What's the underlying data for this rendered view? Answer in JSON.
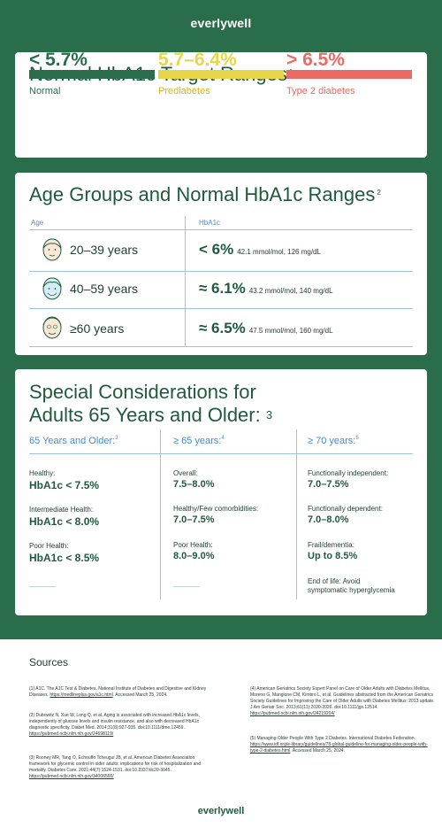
{
  "brand": {
    "logo": "everlywell"
  },
  "colors": {
    "normal": "#2a6d4b",
    "prediabetes": "#e8d64a",
    "type2": "#ea6b63",
    "accent_blue": "#4a8ad0"
  },
  "card1": {
    "title": "Normal HbA1c Target Ranges",
    "sup": "1",
    "ranges": [
      {
        "value": "< 5.7%",
        "label": "Normal"
      },
      {
        "value": "5.7–6.4%",
        "label": "Prediabetes"
      },
      {
        "value": "> 6.5%",
        "label": "Type 2 diabetes"
      }
    ]
  },
  "card2": {
    "title": "Age Groups and Normal HbA1c Ranges",
    "sup": "2",
    "col_age": "Age",
    "col_hba1c": "HbA1c",
    "rows": [
      {
        "icon": "young-face-icon",
        "age": "20–39 years",
        "value": "< 6%",
        "sub": "42.1 mmol/mol, 126 mg/dL"
      },
      {
        "icon": "middle-age-face-icon",
        "age": "40–59 years",
        "value": "≈ 6.1%",
        "sub": "43.2 mmol/mol, 140 mg/dL"
      },
      {
        "icon": "older-face-icon",
        "age": "≥60 years",
        "value": "≈ 6.5%",
        "sub": "47.5 mmol/mol, 160 mg/dL"
      }
    ]
  },
  "card3": {
    "title_line1": "Special Considerations for",
    "title_line2": "Adults 65 Years and Older:",
    "sup": "3",
    "columns": [
      {
        "header": "65 Years and Older:",
        "sup": "3",
        "items": [
          {
            "label": "Healthy:",
            "value": "HbA1c < 7.5%"
          },
          {
            "label": "Intermediate Health:",
            "value": "HbA1c < 8.0%"
          },
          {
            "label": "Poor Health:",
            "value": "HbA1c < 8.5%"
          }
        ]
      },
      {
        "header": "≥ 65 years:",
        "sup": "4",
        "items": [
          {
            "label": "Overall:",
            "value": "7.5–8.0%"
          },
          {
            "label": "Healthy/Few comorbidities:",
            "value": "7.0–7.5%"
          },
          {
            "label": "Poor Health:",
            "value": "8.0–9.0%"
          }
        ]
      },
      {
        "header": "≥ 70 years:",
        "sup": "5",
        "items": [
          {
            "label": "Functionally independent:",
            "value": "7.0–7.5%"
          },
          {
            "label": "Functionally dependent:",
            "value": "7.0–8.0%"
          },
          {
            "label": "Frail/dementia:",
            "value": "Up to 8.5%"
          }
        ],
        "end_note_line1": "End of life: Avoid",
        "end_note_line2": "symptomatic hyperglycemia"
      }
    ]
  },
  "sources": {
    "title": "Sources",
    "left": [
      {
        "num": "(1)",
        "text": "A1C. The A1C Test & Diabetes. National Institute of Diabetes and Digestive and Kidney Diseases.",
        "link": "https://medlineplus.gov/a1c.html",
        "tail": ". Accessed March 25, 2024."
      },
      {
        "num": "(2)",
        "text": "Dubowitz N, Xue W, Long Q, et al. Aging is associated with increased HbA1c levels, independently of glucose levels and insulin resistance, and also with decreased HbA1c diagnostic specificity. Diabet Med. 2014;31(8):927-935. doi:10.1111/dme.12459.",
        "link": "https://pubmed.ncbi.nlm.nih.gov/24698119/",
        "tail": ""
      },
      {
        "num": "(3)",
        "text": "Rooney MR, Tang O, Echouffo Tcheugui JB, et al. American Diabetes Association framework for glycemic control in older adults: implications for risk of hospitalization and mortality. Diabetes Care. 2021;44(7):1524-1531. doi:10.2337/dc20-3045.",
        "link": "https://pubmed.ncbi.nlm.nih.gov/34006566/",
        "tail": ""
      }
    ],
    "right": [
      {
        "num": "(4)",
        "text": "American Geriatrics Society Expert Panel on Care of Older Adults with Diabetes Mellitus, Moreno G, Mangione CM, Kimbro L, et al. Guidelines abstracted from the American Geriatrics Society Guidelines for Improving the Care of Older Adults with Diabetes Mellitus: 2013 update. J Am Geriatr Soc. 2013;61(11):2020-2026. doi:10.1111/jgs.12514.",
        "link": "https://pubmed.ncbi.nlm.nih.gov/24219204/",
        "tail": ""
      },
      {
        "num": "(5)",
        "text": "Managing Older People With Type 2 Diabetes. International Diabetes Federation.",
        "link": "https://www.idf.org/e-library/guidelines/78-global-guideline-for-managing-older-people-with-type-2-diabetes.html",
        "tail": ". Accessed March 25, 2024."
      }
    ]
  },
  "footer": {
    "logo": "everlywell"
  }
}
